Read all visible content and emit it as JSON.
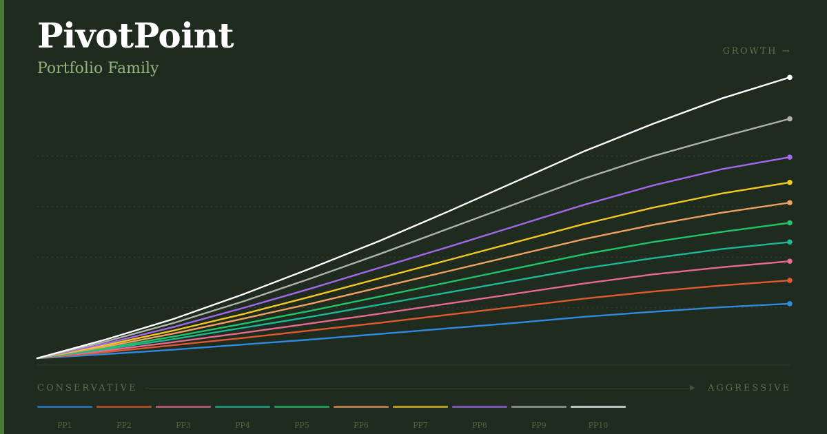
{
  "header": {
    "title": "PivotPoint",
    "subtitle": "Portfolio Family",
    "growth_label": "GROWTH →"
  },
  "axis": {
    "left_label": "CONSERVATIVE",
    "right_label": "AGGRESSIVE"
  },
  "colors": {
    "background": "#1f2b1f",
    "accent": "#4a7a32",
    "subtitle": "#93b57e",
    "muted_text": "#58704c"
  },
  "chart_data": {
    "type": "line",
    "title": "",
    "xlabel": "",
    "ylabel": "",
    "grid": "dotted horizontal",
    "legend": "bottom",
    "x": [
      0,
      1,
      2,
      3,
      4,
      5,
      6,
      7,
      8,
      9,
      10,
      11
    ],
    "series": [
      {
        "name": "PP1",
        "color": "#2f8ae0",
        "values": [
          0,
          0.04,
          0.085,
          0.135,
          0.185,
          0.24,
          0.295,
          0.35,
          0.41,
          0.46,
          0.505,
          0.54
        ]
      },
      {
        "name": "PP2",
        "color": "#e05a2f",
        "values": [
          0,
          0.06,
          0.13,
          0.2,
          0.275,
          0.35,
          0.43,
          0.51,
          0.59,
          0.66,
          0.72,
          0.77
        ]
      },
      {
        "name": "PP3",
        "color": "#e86a8c",
        "values": [
          0,
          0.075,
          0.16,
          0.25,
          0.345,
          0.44,
          0.54,
          0.64,
          0.74,
          0.83,
          0.9,
          0.96
        ]
      },
      {
        "name": "PP4",
        "color": "#1fb895",
        "values": [
          0,
          0.09,
          0.19,
          0.3,
          0.41,
          0.53,
          0.65,
          0.77,
          0.89,
          0.99,
          1.08,
          1.15
        ]
      },
      {
        "name": "PP5",
        "color": "#22c46a",
        "values": [
          0,
          0.1,
          0.215,
          0.34,
          0.47,
          0.61,
          0.75,
          0.89,
          1.03,
          1.15,
          1.25,
          1.34
        ]
      },
      {
        "name": "PP6",
        "color": "#f0a060",
        "values": [
          0,
          0.115,
          0.245,
          0.39,
          0.54,
          0.7,
          0.86,
          1.02,
          1.18,
          1.32,
          1.44,
          1.54
        ]
      },
      {
        "name": "PP7",
        "color": "#f2c824",
        "values": [
          0,
          0.13,
          0.275,
          0.435,
          0.61,
          0.79,
          0.97,
          1.15,
          1.33,
          1.49,
          1.63,
          1.74
        ]
      },
      {
        "name": "PP8",
        "color": "#a268ec",
        "values": [
          0,
          0.145,
          0.31,
          0.495,
          0.69,
          0.895,
          1.1,
          1.31,
          1.52,
          1.71,
          1.87,
          1.99
        ]
      },
      {
        "name": "PP9",
        "color": "#b0b3aa",
        "values": [
          0,
          0.165,
          0.35,
          0.56,
          0.79,
          1.03,
          1.28,
          1.53,
          1.78,
          2.0,
          2.19,
          2.37
        ]
      },
      {
        "name": "PP10",
        "color": "#ffffff",
        "values": [
          0,
          0.185,
          0.39,
          0.63,
          0.89,
          1.16,
          1.45,
          1.75,
          2.05,
          2.32,
          2.57,
          2.78
        ]
      }
    ],
    "ylim": [
      0,
      3
    ]
  }
}
